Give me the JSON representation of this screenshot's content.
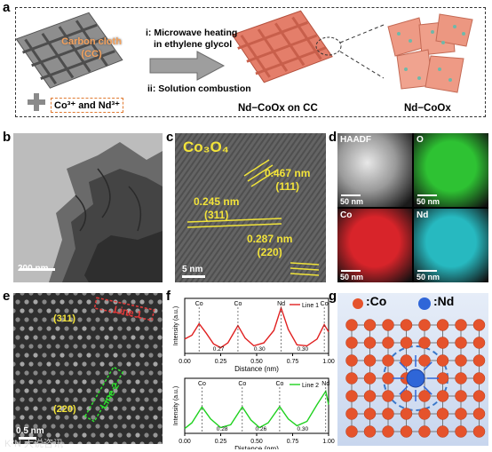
{
  "panel_a": {
    "label": "a",
    "cc_label_line1": "Carbon cloth",
    "cc_label_line2": "(CC)",
    "step_i_line1": "i: Microwave heating",
    "step_i_line2": "in ethylene glycol",
    "step_ii": "ii: Solution combustion",
    "precursors": "Co³⁺ and Nd³⁺",
    "product_on_cc": "Nd−CoOx on CC",
    "product": "Nd−CoOx"
  },
  "panel_b": {
    "label": "b",
    "scale_bar": "200 nm"
  },
  "panel_c": {
    "label": "c",
    "title": "Co₃O₄",
    "d1": "0.467 nm",
    "d1_plane": "(111)",
    "d2": "0.245 nm",
    "d2_plane": "(311)",
    "d3": "0.287 nm",
    "d3_plane": "(220)",
    "scale_bar": "5 nm"
  },
  "panel_d": {
    "label": "d",
    "tiles": [
      {
        "name": "HAADF",
        "scale": "50 nm",
        "color": "#cfcfcf"
      },
      {
        "name": "O",
        "scale": "50 nm",
        "color": "#2ec233"
      },
      {
        "name": "Co",
        "scale": "50 nm",
        "color": "#d8242a"
      },
      {
        "name": "Nd",
        "scale": "50 nm",
        "color": "#27b9c0"
      }
    ]
  },
  "panel_e": {
    "label": "e",
    "plane1": "(311)",
    "line1": "Line 1",
    "plane2": "(220)",
    "line2": "Line 2",
    "scale_bar": "0.5 nm",
    "watermark": "K²N 大说咨讯"
  },
  "panel_f": {
    "label": "f",
    "ylabel": "Intensity (a.u.)",
    "xlabel": "Distance (nm)",
    "ticks": [
      "0.00",
      "0.25",
      "0.50",
      "0.75",
      "1.00"
    ],
    "top": {
      "legend": "Line 1",
      "color": "#e02020",
      "peaks": [
        {
          "x": 0.1,
          "label": "Co"
        },
        {
          "x": 0.37,
          "label": "Co"
        },
        {
          "x": 0.67,
          "label": "Nd"
        },
        {
          "x": 0.97,
          "label": "Co"
        }
      ],
      "spacings": [
        "0.27",
        "0.30",
        "0.30"
      ]
    },
    "bottom": {
      "legend": "Line 2",
      "color": "#1fd11f",
      "peaks": [
        {
          "x": 0.12,
          "label": "Co"
        },
        {
          "x": 0.4,
          "label": "Co"
        },
        {
          "x": 0.66,
          "label": "Co"
        },
        {
          "x": 0.98,
          "label": "Nd"
        }
      ],
      "spacings": [
        "0.28",
        "0.26",
        "0.30"
      ]
    }
  },
  "panel_g": {
    "label": "g",
    "legend_co": ":Co",
    "legend_nd": ":Nd",
    "co_color": "#e5532c",
    "nd_color": "#2f66d8",
    "grid_rows": 7,
    "grid_cols": 8
  },
  "chart_data": [
    {
      "type": "line",
      "title": "",
      "xlabel": "Distance (nm)",
      "ylabel": "Intensity (a.u.)",
      "xlim": [
        0,
        1.0
      ],
      "series": [
        {
          "name": "Line 1",
          "x": [
            0.0,
            0.05,
            0.1,
            0.15,
            0.2,
            0.25,
            0.3,
            0.37,
            0.42,
            0.48,
            0.55,
            0.62,
            0.67,
            0.72,
            0.78,
            0.85,
            0.92,
            0.97,
            1.0
          ],
          "y": [
            0.3,
            0.38,
            0.62,
            0.42,
            0.2,
            0.12,
            0.22,
            0.58,
            0.32,
            0.16,
            0.22,
            0.48,
            0.95,
            0.5,
            0.18,
            0.16,
            0.3,
            0.6,
            0.45
          ]
        }
      ]
    },
    {
      "type": "line",
      "title": "",
      "xlabel": "Distance (nm)",
      "ylabel": "Intensity (a.u.)",
      "xlim": [
        0,
        1.0
      ],
      "series": [
        {
          "name": "Line 2",
          "x": [
            0.0,
            0.05,
            0.12,
            0.18,
            0.25,
            0.32,
            0.4,
            0.46,
            0.52,
            0.58,
            0.66,
            0.72,
            0.78,
            0.85,
            0.92,
            0.98,
            1.0
          ],
          "y": [
            0.1,
            0.22,
            0.55,
            0.3,
            0.12,
            0.18,
            0.55,
            0.28,
            0.12,
            0.22,
            0.56,
            0.3,
            0.16,
            0.25,
            0.6,
            0.88,
            0.6
          ]
        }
      ]
    }
  ]
}
